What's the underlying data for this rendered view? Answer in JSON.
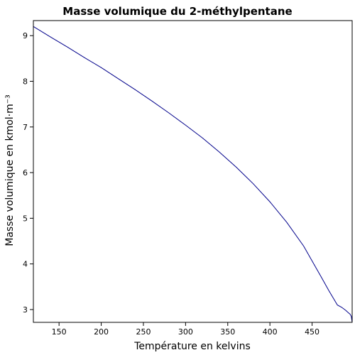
{
  "chart_data": {
    "type": "line",
    "title": "Masse volumique du 2-méthylpentane",
    "xlabel": "Température en kelvins",
    "ylabel": "Masse volumique en kmol·m⁻³",
    "xlim": [
      119.55,
      497.5
    ],
    "ylim": [
      2.72,
      9.33
    ],
    "xticks": [
      150,
      200,
      250,
      300,
      350,
      400,
      450
    ],
    "yticks": [
      3,
      4,
      5,
      6,
      7,
      8,
      9
    ],
    "grid": false,
    "legend": "none",
    "series": [
      {
        "color": "#00008b",
        "x": [
          119.55,
          140,
          160,
          180,
          200,
          220,
          240,
          260,
          280,
          300,
          320,
          340,
          360,
          380,
          400,
          420,
          440,
          460,
          470,
          480,
          485,
          490,
          493,
          495,
          496.5,
          497.5
        ],
        "y": [
          9.2,
          8.97,
          8.75,
          8.52,
          8.3,
          8.06,
          7.82,
          7.57,
          7.31,
          7.04,
          6.76,
          6.45,
          6.12,
          5.76,
          5.36,
          4.91,
          4.39,
          3.74,
          3.41,
          3.1,
          3.05,
          2.98,
          2.93,
          2.9,
          2.85,
          2.72
        ]
      }
    ]
  }
}
